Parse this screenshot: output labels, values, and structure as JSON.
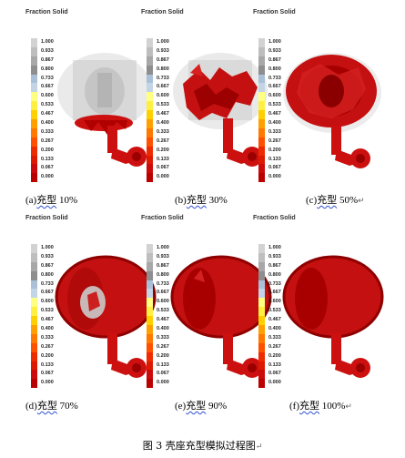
{
  "legend_title": "Fraction  Solid",
  "scale_values": [
    "1.000",
    "0.933",
    "0.867",
    "0.800",
    "0.733",
    "0.667",
    "0.600",
    "0.533",
    "0.467",
    "0.400",
    "0.333",
    "0.267",
    "0.200",
    "0.133",
    "0.067",
    "0.000"
  ],
  "scale_colors": [
    "#d2d2d2",
    "#bebebe",
    "#a8a8a8",
    "#8e8e8e",
    "#a9c0d8",
    "#c3d4e6",
    "#ffff80",
    "#ffef40",
    "#ffd000",
    "#ffa000",
    "#ff7800",
    "#ff5000",
    "#ee2a00",
    "#dd1a00",
    "#cc0a0a",
    "#bb0000"
  ],
  "panels": [
    {
      "label_prefix": "(a)",
      "label_word": "充型",
      "label_value": "10%",
      "mark": ""
    },
    {
      "label_prefix": "(b)",
      "label_word": "充型",
      "label_value": "30%",
      "mark": ""
    },
    {
      "label_prefix": "(c)",
      "label_word": "充型",
      "label_value": "50%",
      "mark": "↵"
    },
    {
      "label_prefix": "(d)",
      "label_word": "充型",
      "label_value": "70%",
      "mark": ""
    },
    {
      "label_prefix": "(e)",
      "label_word": "充型",
      "label_value": "90%",
      "mark": ""
    },
    {
      "label_prefix": "(f)",
      "label_word": "充型",
      "label_value": "100%",
      "mark": "↵"
    }
  ],
  "figure_caption": "图 3 壳座充型模拟过程图",
  "figure_caption_mark": "↵"
}
